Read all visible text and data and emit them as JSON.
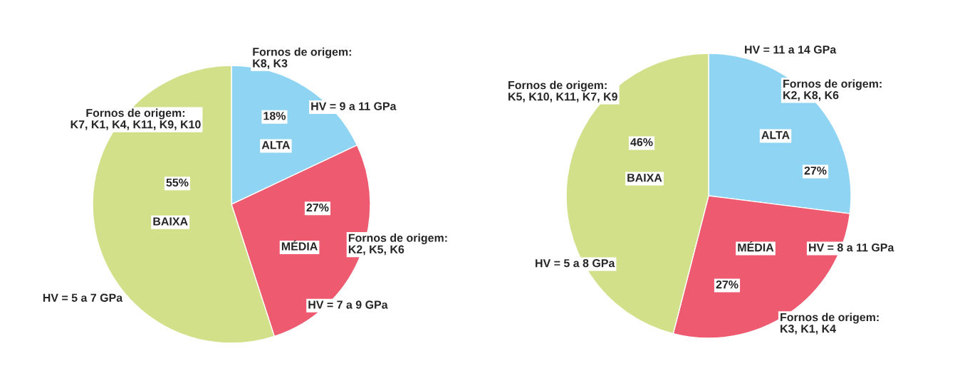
{
  "chart_data": [
    {
      "type": "pie",
      "categories": [
        "ALTA",
        "MÉDIA",
        "BAIXA"
      ],
      "values": [
        18,
        27,
        55
      ],
      "colors": [
        "#8fd5f3",
        "#ee5a6f",
        "#d3e08a"
      ],
      "value_labels": [
        "18%",
        "27%",
        "55%"
      ],
      "annotations": [
        "Fornos de origem:\nK8, K3",
        "HV = 9 a 11 GPa",
        "Fornos de origem:\nK2, K5, K6",
        "HV = 7 a 9 GPa",
        "Fornos de origem:\nK7, K1, K4, K11, K9, K10",
        "HV = 5 a 7 GPa"
      ]
    },
    {
      "type": "pie",
      "categories": [
        "ALTA",
        "MÉDIA",
        "BAIXA"
      ],
      "values": [
        27,
        27,
        46
      ],
      "colors": [
        "#8fd5f3",
        "#ee5a6f",
        "#d3e08a"
      ],
      "value_labels": [
        "27%",
        "27%",
        "46%"
      ],
      "annotations": [
        "HV = 11 a 14 GPa",
        "Fornos de origem:\nK2, K8, K6",
        "HV = 8 a 11 GPa",
        "Fornos de origem:\nK3, K1, K4",
        "Fornos de origem:\nK5, K10, K11, K7, K9",
        "HV = 5 a 8 GPa"
      ]
    }
  ]
}
